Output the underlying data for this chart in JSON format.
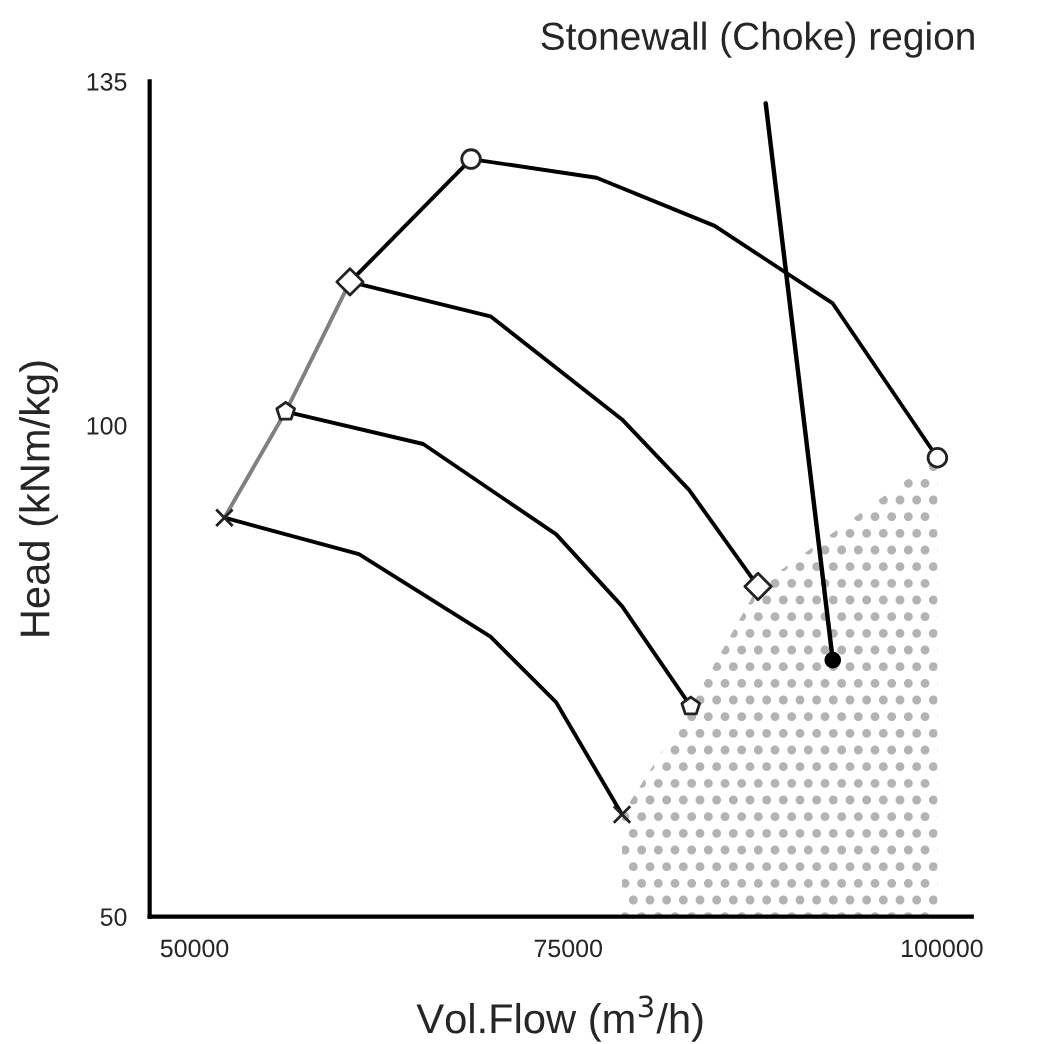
{
  "chart_data": {
    "type": "line",
    "xlabel": "Vol.Flow (m$^{3}$/h)",
    "ylabel": "Head (kNm/kg)",
    "xlim": [
      47000,
      102000
    ],
    "ylim": [
      50,
      135
    ],
    "xticks": [
      50000,
      75000,
      100000
    ],
    "yticks": [
      50,
      100,
      135
    ],
    "grid": false,
    "legend": false,
    "series": [
      {
        "type": "area",
        "color": "#b3b3b3",
        "x": [
          78600,
          83200,
          87700,
          99700
        ],
        "values": [
          60.4,
          71.4,
          83.6,
          96.7
        ]
      },
      {
        "color": "#000000",
        "marker": "none",
        "x": [
          52000,
          61000,
          69800,
          74200,
          78600
        ],
        "values": [
          90.6,
          86.9,
          78.5,
          71.8,
          60.4
        ]
      },
      {
        "color": "#000000",
        "marker": "none",
        "x": [
          56100,
          65300,
          74200,
          78600,
          83200
        ],
        "values": [
          101.4,
          98.1,
          88.9,
          81.6,
          71.4
        ]
      },
      {
        "color": "#000000",
        "marker": "none",
        "x": [
          60400,
          69800,
          78600,
          83100,
          87700
        ],
        "values": [
          114.6,
          111.1,
          100.6,
          93.4,
          83.6
        ]
      },
      {
        "color": "#000000",
        "marker": "none",
        "x": [
          68500,
          76900,
          84800,
          92700,
          99700
        ],
        "values": [
          127.1,
          125.2,
          120.3,
          112.4,
          96.7
        ]
      },
      {
        "color": "#808080",
        "marker": "none",
        "x": [
          52000,
          56100,
          60400
        ],
        "values": [
          90.6,
          101.4,
          114.6
        ]
      },
      {
        "color": "#000000",
        "marker": "none",
        "x": [
          60400,
          68500
        ],
        "values": [
          114.6,
          127.1
        ]
      },
      {
        "type": "scatter",
        "color": "#222222",
        "marker": "cross",
        "x": [
          52000,
          78600
        ],
        "values": [
          90.6,
          60.4
        ]
      },
      {
        "type": "scatter",
        "color": "#222222",
        "x": [
          56100,
          83200
        ],
        "values": [
          101.4,
          71.4
        ]
      },
      {
        "type": "scatter",
        "color": "#222222",
        "marker": "diamond",
        "x": [
          60400,
          87700
        ],
        "values": [
          114.6,
          83.6
        ]
      },
      {
        "type": "scatter",
        "color": "#222222",
        "marker": "circle",
        "x": [
          68500,
          99700
        ],
        "values": [
          127.1,
          96.7
        ]
      }
    ],
    "annotations": [
      {
        "text": "Stonewall (Choke) region",
        "x": 92700,
        "y": 76.1
      }
    ]
  }
}
